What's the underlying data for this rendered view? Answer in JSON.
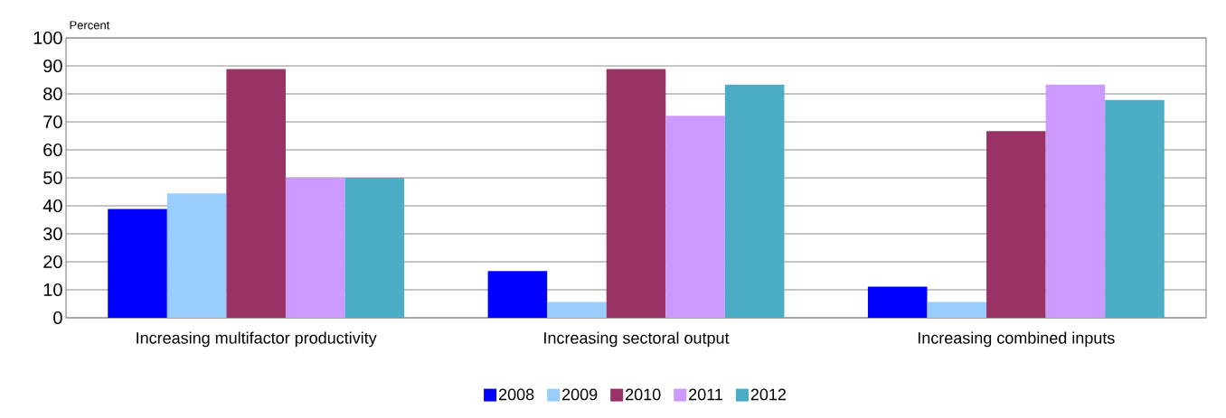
{
  "chart_data": {
    "type": "bar",
    "ylabel": "Percent",
    "categories": [
      "Increasing multifactor productivity",
      "Increasing sectoral output",
      "Increasing combined inputs"
    ],
    "series": [
      {
        "name": "2008",
        "color": "#0000ff",
        "values": [
          38.9,
          16.7,
          11.1
        ]
      },
      {
        "name": "2009",
        "color": "#99ccff",
        "values": [
          44.4,
          5.6,
          5.6
        ]
      },
      {
        "name": "2010",
        "color": "#993366",
        "values": [
          88.9,
          88.9,
          66.7
        ]
      },
      {
        "name": "2011",
        "color": "#cc99ff",
        "values": [
          50,
          72.2,
          83.3
        ]
      },
      {
        "name": "2012",
        "color": "#4bacc6",
        "values": [
          50,
          83.3,
          77.8
        ]
      }
    ],
    "ylim": [
      0,
      100
    ],
    "yticks": [
      0,
      10,
      20,
      30,
      40,
      50,
      60,
      70,
      80,
      90,
      100
    ],
    "grid": "y",
    "legend": "bottom"
  }
}
